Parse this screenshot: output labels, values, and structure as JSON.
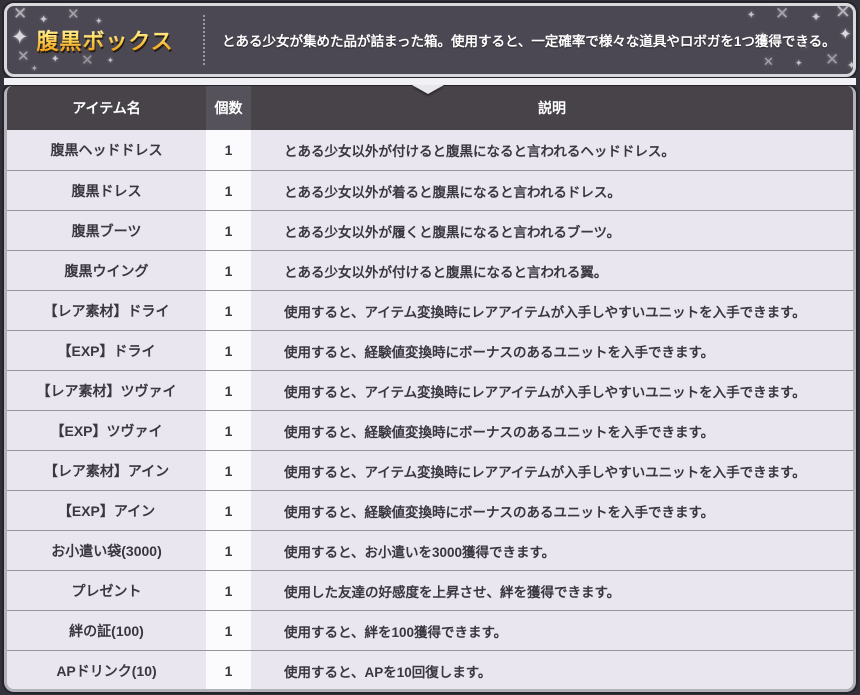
{
  "header": {
    "title": "腹黒ボックス",
    "description": "とある少女が集めた品が詰まった箱。使用すると、一定確率で様々な道具やロボガを1つ獲得できる。"
  },
  "table": {
    "columns": [
      "アイテム名",
      "個数",
      "説明"
    ],
    "rows": [
      {
        "name": "腹黒ヘッドドレス",
        "count": "1",
        "desc": "とある少女以外が付けると腹黒になると言われるヘッドドレス。"
      },
      {
        "name": "腹黒ドレス",
        "count": "1",
        "desc": "とある少女以外が着ると腹黒になると言われるドレス。"
      },
      {
        "name": "腹黒ブーツ",
        "count": "1",
        "desc": "とある少女以外が履くと腹黒になると言われるブーツ。"
      },
      {
        "name": "腹黒ウイング",
        "count": "1",
        "desc": "とある少女以外が付けると腹黒になると言われる翼。"
      },
      {
        "name": "【レア素材】ドライ",
        "count": "1",
        "desc": "使用すると、アイテム変換時にレアアイテムが入手しやすいユニットを入手できます。"
      },
      {
        "name": "【EXP】ドライ",
        "count": "1",
        "desc": "使用すると、経験値変換時にボーナスのあるユニットを入手できます。"
      },
      {
        "name": "【レア素材】ツヴァイ",
        "count": "1",
        "desc": "使用すると、アイテム変換時にレアアイテムが入手しやすいユニットを入手できます。"
      },
      {
        "name": "【EXP】ツヴァイ",
        "count": "1",
        "desc": "使用すると、経験値変換時にボーナスのあるユニットを入手できます。"
      },
      {
        "name": "【レア素材】アイン",
        "count": "1",
        "desc": "使用すると、アイテム変換時にレアアイテムが入手しやすいユニットを入手できます。"
      },
      {
        "name": "【EXP】アイン",
        "count": "1",
        "desc": "使用すると、経験値変換時にボーナスのあるユニットを入手できます。"
      },
      {
        "name": "お小遣い袋(3000)",
        "count": "1",
        "desc": "使用すると、お小遣いを3000獲得できます。"
      },
      {
        "name": "プレゼント",
        "count": "1",
        "desc": "使用した友達の好感度を上昇させ、絆を獲得できます。"
      },
      {
        "name": "絆の証(100)",
        "count": "1",
        "desc": "使用すると、絆を100獲得できます。"
      },
      {
        "name": "APドリンク(10)",
        "count": "1",
        "desc": "使用すると、APを10回復します。"
      }
    ]
  },
  "colors": {
    "title_gold": "#f7b733",
    "header_bg": "#4c4853",
    "header_border": "#d9d8dc",
    "table_header_bg": "#474349",
    "row_bg": "#e9e6ef",
    "count_col_bg": "#fbfafd",
    "row_separator": "#97949d",
    "page_bg": "#34313a"
  }
}
